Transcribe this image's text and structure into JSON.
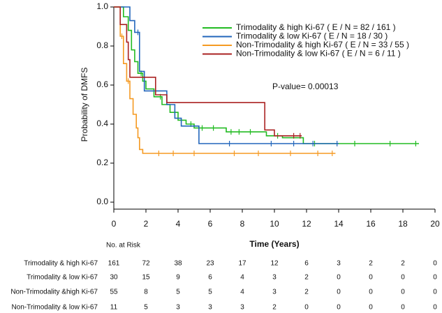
{
  "chart_data": {
    "type": "line",
    "step": true,
    "xlabel": "Time (Years)",
    "ylabel": "Probability of DMFS",
    "annotation": "P-value= 0.00013",
    "legend": "upper right",
    "xlim": [
      0,
      20
    ],
    "xticks": [
      0,
      2,
      4,
      6,
      8,
      10,
      12,
      14,
      16,
      18,
      20
    ],
    "ylim": [
      0,
      1
    ],
    "yticks": [
      {
        "value": 0,
        "label": "0.0"
      },
      0.2,
      0.4,
      0.6,
      0.8,
      {
        "value": 1,
        "label": "1.0"
      }
    ],
    "series": [
      {
        "name": "Trimodality & high Ki-67  ( E / N = 82 / 161 )",
        "color": "#22bb22",
        "x": [
          0,
          0.6,
          0.9,
          1.1,
          1.3,
          1.5,
          1.8,
          2.0,
          2.5,
          3.0,
          3.5,
          4.0,
          4.5,
          5.0,
          7.0,
          9.5,
          10.5,
          11.8,
          19.0
        ],
        "values": [
          1.0,
          0.95,
          0.88,
          0.78,
          0.72,
          0.66,
          0.62,
          0.58,
          0.54,
          0.5,
          0.46,
          0.42,
          0.4,
          0.38,
          0.36,
          0.34,
          0.33,
          0.3,
          0.3
        ],
        "censor_x": [
          1.7,
          2.9,
          3.8,
          4.8,
          5.5,
          6.2,
          7.3,
          7.8,
          8.5,
          10.2,
          12.5,
          15.0,
          17.2,
          18.8
        ]
      },
      {
        "name": "Trimodality & low Ki-67  ( E / N = 18 / 30 )",
        "color": "#2266bb",
        "x": [
          0,
          1.0,
          1.3,
          1.6,
          1.9,
          3.3,
          3.8,
          4.2,
          5.3,
          14.0
        ],
        "values": [
          1.0,
          0.93,
          0.87,
          0.67,
          0.57,
          0.5,
          0.43,
          0.39,
          0.3,
          0.3
        ],
        "censor_x": [
          1.5,
          7.2,
          9.8,
          11.2,
          12.4,
          13.9
        ]
      },
      {
        "name": "Non-Trimodality & high Ki-67  ( E / N = 33 / 55 )",
        "color": "#f59a22",
        "x": [
          0,
          0.4,
          0.6,
          0.8,
          1.0,
          1.2,
          1.4,
          1.5,
          1.6,
          1.8,
          13.8
        ],
        "values": [
          1.0,
          0.85,
          0.71,
          0.62,
          0.53,
          0.45,
          0.38,
          0.33,
          0.27,
          0.25,
          0.25
        ],
        "censor_x": [
          0.5,
          0.9,
          2.8,
          3.7,
          5.0,
          7.5,
          9.0,
          11.0,
          12.7,
          13.6
        ]
      },
      {
        "name": "Non-Trimodality & low Ki-67  ( E / N = 6 / 11 )",
        "color": "#aa2222",
        "x": [
          0,
          0.4,
          0.8,
          0.9,
          1.0,
          2.6,
          3.3,
          9.4,
          10.0,
          11.7
        ],
        "values": [
          1.0,
          0.91,
          0.82,
          0.73,
          0.64,
          0.55,
          0.51,
          0.37,
          0.34,
          0.34
        ],
        "censor_x": [
          11.2,
          11.6
        ]
      }
    ],
    "risk_table": {
      "title": "No. at Risk",
      "rows": [
        {
          "label": "Trimodality & high Ki-67",
          "values": [
            161,
            72,
            38,
            23,
            17,
            12,
            6,
            3,
            2,
            2,
            0
          ]
        },
        {
          "label": "Trimodality & low Ki-67",
          "values": [
            30,
            15,
            9,
            6,
            4,
            3,
            2,
            0,
            0,
            0,
            0
          ]
        },
        {
          "label": "Non-Trimodality &high Ki-67",
          "values": [
            55,
            8,
            5,
            5,
            4,
            3,
            2,
            0,
            0,
            0,
            0
          ]
        },
        {
          "label": "Non-Trimodality & low  Ki-67",
          "values": [
            11,
            5,
            3,
            3,
            3,
            2,
            0,
            0,
            0,
            0,
            0
          ]
        }
      ]
    }
  }
}
